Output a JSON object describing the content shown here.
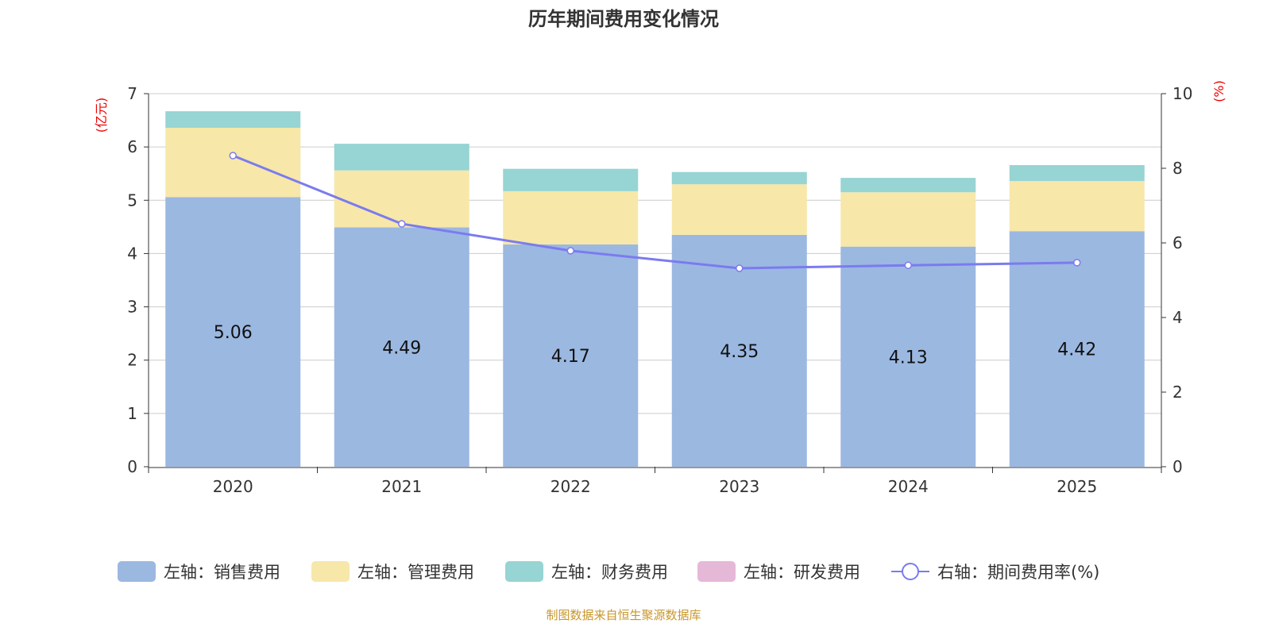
{
  "chart_data": {
    "type": "bar",
    "title": "历年期间费用变化情况",
    "left_unit": "(亿元)",
    "right_unit": "(%)",
    "categories": [
      "2020",
      "2021",
      "2022",
      "2023",
      "2024",
      "2025"
    ],
    "left_ylim": [
      0,
      7
    ],
    "left_ticks": [
      "0",
      "1",
      "2",
      "3",
      "4",
      "5",
      "6",
      "7"
    ],
    "right_ylim": [
      0,
      10
    ],
    "right_ticks": [
      "0",
      "2",
      "4",
      "6",
      "8",
      "10"
    ],
    "series": [
      {
        "name": "左轴：销售费用",
        "axis": "left",
        "type": "bar",
        "color": "#9bb8e1",
        "values": [
          5.06,
          4.49,
          4.17,
          4.35,
          4.13,
          4.42
        ],
        "labels": [
          "5.06",
          "4.49",
          "4.17",
          "4.35",
          "4.13",
          "4.42"
        ]
      },
      {
        "name": "左轴：管理费用",
        "axis": "left",
        "type": "bar",
        "color": "#f7e7a9",
        "values": [
          1.3,
          1.07,
          1.0,
          0.95,
          1.02,
          0.94
        ]
      },
      {
        "name": "左轴：财务费用",
        "axis": "left",
        "type": "bar",
        "color": "#97d4d4",
        "values": [
          0.31,
          0.5,
          0.42,
          0.23,
          0.27,
          0.3
        ]
      },
      {
        "name": "左轴：研发费用",
        "axis": "left",
        "type": "bar",
        "color": "#e6b8d8",
        "values": [
          0,
          0,
          0,
          0,
          0,
          0
        ]
      },
      {
        "name": "右轴：期间费用率(%)",
        "axis": "right",
        "type": "line",
        "color": "#7b7bef",
        "values": [
          8.34,
          6.51,
          5.79,
          5.32,
          5.4,
          5.47
        ]
      }
    ],
    "legend_position": "bottom",
    "grid": true,
    "source": "制图数据来自恒生聚源数据库"
  }
}
